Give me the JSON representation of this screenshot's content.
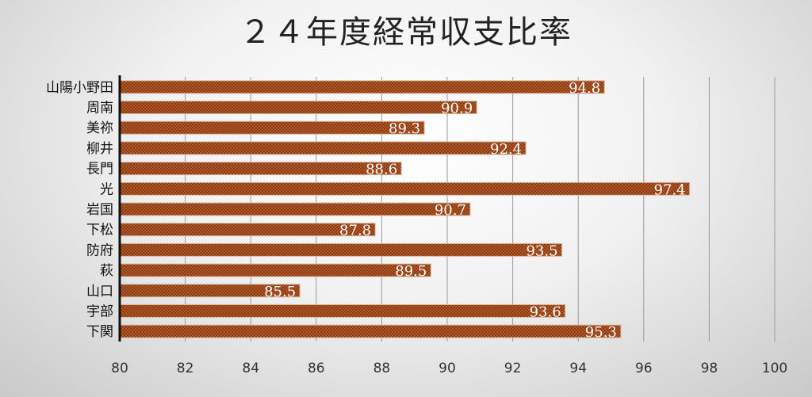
{
  "chart_data": {
    "type": "bar",
    "orientation": "horizontal",
    "title": "２４年度経常収支比率",
    "categories": [
      "山陽小野田",
      "周南",
      "美祢",
      "柳井",
      "長門",
      "光",
      "岩国",
      "下松",
      "防府",
      "萩",
      "山口",
      "宇部",
      "下関"
    ],
    "values": [
      94.8,
      90.9,
      89.3,
      92.4,
      88.6,
      97.4,
      90.7,
      87.8,
      93.5,
      89.5,
      85.5,
      93.6,
      95.3
    ],
    "xlim": [
      80,
      100
    ],
    "x_ticks": [
      80,
      82,
      84,
      86,
      88,
      90,
      92,
      94,
      96,
      98,
      100
    ],
    "grid": true,
    "data_labels": true,
    "legend": "none",
    "colors": {
      "bar_fill": "#8b3a12",
      "bar_dot": "#c8703a",
      "label_text": "#ffffff",
      "grid": "#9a9a9a",
      "axis": "#111111"
    }
  }
}
